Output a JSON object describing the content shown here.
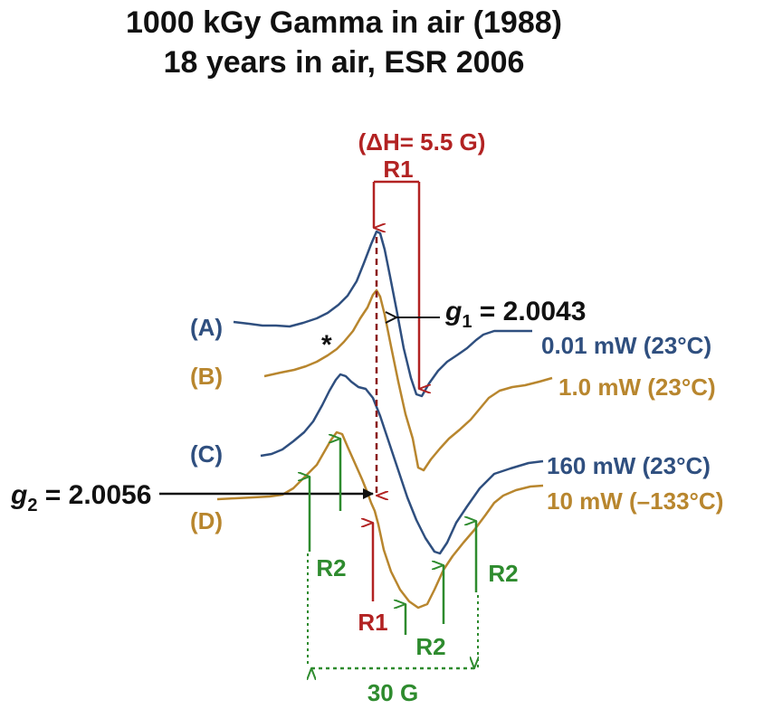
{
  "title_line1": "1000 kGy Gamma in air (1988)",
  "title_line2": "18 years in air, ESR 2006",
  "colors": {
    "blue": "#2f4f7f",
    "orange": "#b8862e",
    "red": "#b22222",
    "green": "#2e8b2e",
    "black": "#111111"
  },
  "chart_data": {
    "type": "line",
    "title": "1000 kGy Gamma in air (1988) / 18 years in air, ESR 2006",
    "series": [
      {
        "name": "(A)",
        "condition": "0.01 mW (23°C)",
        "color": "blue"
      },
      {
        "name": "(B)",
        "condition": "1.0 mW (23°C)",
        "color": "orange"
      },
      {
        "name": "(C)",
        "condition": "160 mW (23°C)",
        "color": "blue"
      },
      {
        "name": "(D)",
        "condition": "10 mW (–133°C)",
        "color": "orange"
      }
    ],
    "annotations": {
      "delta_h": "(ΔH= 5.5 G)",
      "r1": "R1",
      "r2": "R2",
      "g1_symbol": "g",
      "g1_sub": "1",
      "g1_value": " = 2.0043",
      "g2_symbol": "g",
      "g2_sub": "2",
      "g2_value": " = 2.0056",
      "star": "*",
      "span": "30 G"
    }
  }
}
